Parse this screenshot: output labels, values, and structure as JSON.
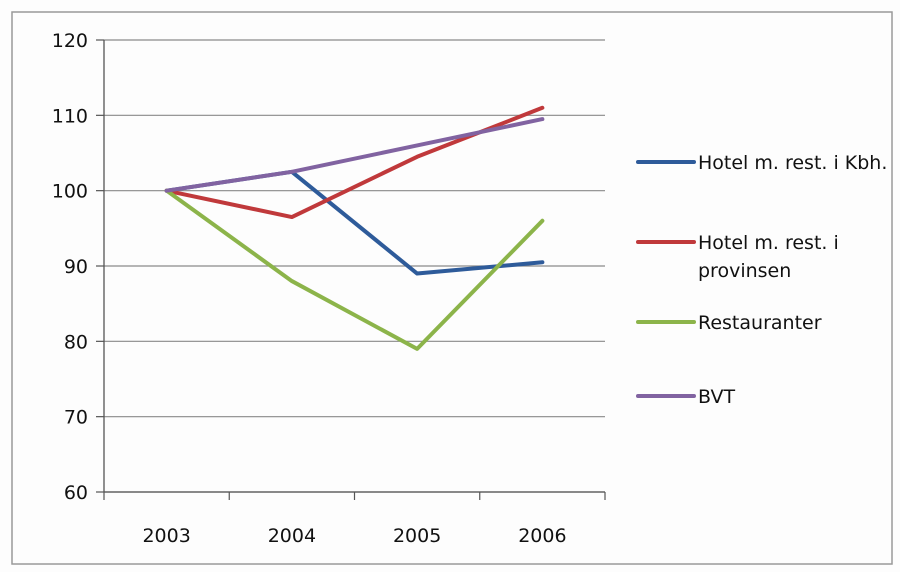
{
  "chart_data": {
    "type": "line",
    "title": "",
    "xlabel": "",
    "ylabel": "",
    "categories": [
      "2003",
      "2004",
      "2005",
      "2006"
    ],
    "ylim": [
      60,
      120
    ],
    "yticks": [
      60,
      70,
      80,
      90,
      100,
      110,
      120
    ],
    "grid": true,
    "legend_position": "right",
    "series": [
      {
        "name": "Hotel m. rest. i Kbh.",
        "color": "#2e5b9a",
        "values": [
          100,
          102.5,
          89,
          90.5
        ]
      },
      {
        "name": "Hotel m. rest. i provinsen",
        "color": "#c0393b",
        "values": [
          100,
          96.5,
          104.5,
          111
        ]
      },
      {
        "name": "Restauranter",
        "color": "#8cb44a",
        "values": [
          100,
          88,
          79,
          96
        ]
      },
      {
        "name": "BVT",
        "color": "#8163a1",
        "values": [
          100,
          102.5,
          106,
          109.5
        ]
      }
    ]
  }
}
